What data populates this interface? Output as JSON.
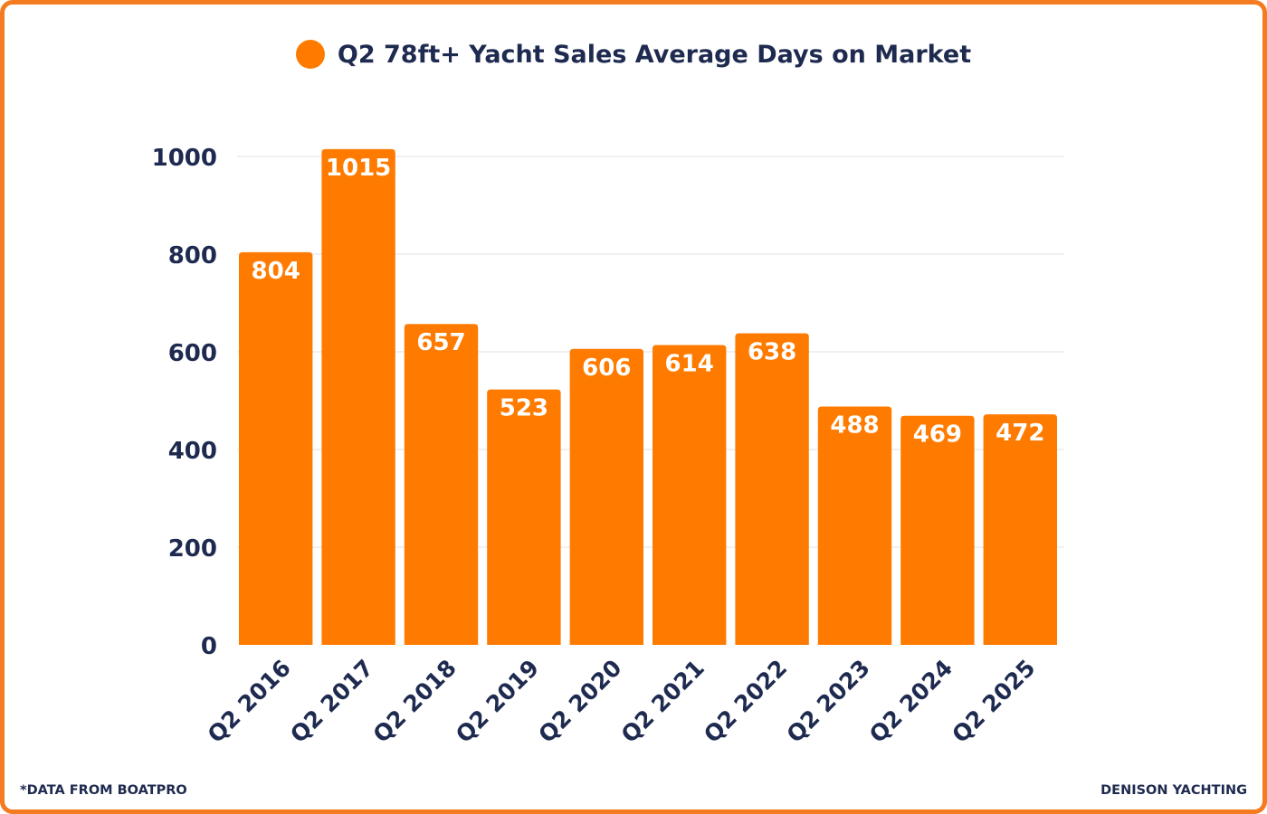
{
  "chart_data": {
    "type": "bar",
    "legend": "Q2 78ft+ Yacht Sales Average Days on Market",
    "legend_position": "top-center",
    "categories": [
      "Q2 2016",
      "Q2 2017",
      "Q2 2018",
      "Q2 2019",
      "Q2 2020",
      "Q2 2021",
      "Q2 2022",
      "Q2 2023",
      "Q2 2024",
      "Q2 2025"
    ],
    "series": [
      {
        "name": "Q2 78ft+ Yacht Sales Average Days on Market",
        "values": [
          804,
          1015,
          657,
          523,
          606,
          614,
          638,
          488,
          469,
          472
        ]
      }
    ],
    "ylim": [
      0,
      1000
    ],
    "yticks": [
      0,
      200,
      400,
      600,
      800,
      1000
    ],
    "grid": true,
    "data_labels": true
  },
  "footer": {
    "source_note": "*DATA FROM BOATPRO",
    "brand": "DENISON YACHTING"
  },
  "colors": {
    "bar": "#FF7B00",
    "frame": "#F47B20",
    "text": "#1E2A4F",
    "grid": "#E2E2E2",
    "label": "#FFFFFF"
  }
}
